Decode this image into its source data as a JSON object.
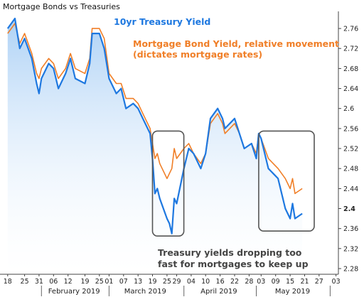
{
  "chart_data": {
    "type": "line",
    "title": "Mortgage Bonds vs Treasuries",
    "colors": {
      "treasury": "#1E78E0",
      "mbs": "#F07F28",
      "area_top": "#A9CFF5",
      "box": "#555555",
      "note": "#444444"
    },
    "series": [
      {
        "name": "10yr Treasury Yield",
        "x": [
          "2019-01-18",
          "2019-01-21",
          "2019-01-23",
          "2019-01-25",
          "2019-01-28",
          "2019-01-30",
          "2019-01-31",
          "2019-02-01",
          "2019-02-04",
          "2019-02-06",
          "2019-02-08",
          "2019-02-11",
          "2019-02-13",
          "2019-02-15",
          "2019-02-19",
          "2019-02-21",
          "2019-02-22",
          "2019-02-25",
          "2019-02-27",
          "2019-03-01",
          "2019-03-04",
          "2019-03-06",
          "2019-03-08",
          "2019-03-11",
          "2019-03-13",
          "2019-03-15",
          "2019-03-18",
          "2019-03-19",
          "2019-03-20",
          "2019-03-21",
          "2019-03-22",
          "2019-03-25",
          "2019-03-26",
          "2019-03-27",
          "2019-03-28",
          "2019-03-29",
          "2019-04-01",
          "2019-04-03",
          "2019-04-05",
          "2019-04-08",
          "2019-04-10",
          "2019-04-12",
          "2019-04-15",
          "2019-04-17",
          "2019-04-18",
          "2019-04-22",
          "2019-04-24",
          "2019-04-26",
          "2019-04-29",
          "2019-05-01",
          "2019-05-02",
          "2019-05-03",
          "2019-05-06",
          "2019-05-08",
          "2019-05-10",
          "2019-05-13",
          "2019-05-15",
          "2019-05-16",
          "2019-05-17",
          "2019-05-20"
        ],
        "values": [
          2.76,
          2.78,
          2.72,
          2.74,
          2.7,
          2.65,
          2.63,
          2.66,
          2.69,
          2.68,
          2.64,
          2.67,
          2.7,
          2.66,
          2.65,
          2.69,
          2.75,
          2.75,
          2.72,
          2.66,
          2.63,
          2.64,
          2.6,
          2.61,
          2.6,
          2.58,
          2.55,
          2.5,
          2.43,
          2.44,
          2.42,
          2.38,
          2.37,
          2.35,
          2.42,
          2.41,
          2.48,
          2.52,
          2.51,
          2.48,
          2.51,
          2.58,
          2.6,
          2.58,
          2.56,
          2.58,
          2.55,
          2.52,
          2.53,
          2.5,
          2.55,
          2.54,
          2.48,
          2.47,
          2.46,
          2.4,
          2.38,
          2.41,
          2.38,
          2.39
        ]
      },
      {
        "name": "Mortgage Bond Yield, relative movement (dictates mortgage rates)",
        "x": [
          "2019-01-18",
          "2019-01-21",
          "2019-01-23",
          "2019-01-25",
          "2019-01-28",
          "2019-01-30",
          "2019-01-31",
          "2019-02-01",
          "2019-02-04",
          "2019-02-06",
          "2019-02-08",
          "2019-02-11",
          "2019-02-13",
          "2019-02-15",
          "2019-02-19",
          "2019-02-21",
          "2019-02-22",
          "2019-02-25",
          "2019-02-27",
          "2019-03-01",
          "2019-03-04",
          "2019-03-06",
          "2019-03-08",
          "2019-03-11",
          "2019-03-13",
          "2019-03-15",
          "2019-03-18",
          "2019-03-19",
          "2019-03-20",
          "2019-03-21",
          "2019-03-22",
          "2019-03-25",
          "2019-03-26",
          "2019-03-27",
          "2019-03-28",
          "2019-03-29",
          "2019-04-01",
          "2019-04-03",
          "2019-04-05",
          "2019-04-08",
          "2019-04-10",
          "2019-04-12",
          "2019-04-15",
          "2019-04-17",
          "2019-04-18",
          "2019-04-22",
          "2019-04-24",
          "2019-04-26",
          "2019-04-29",
          "2019-05-01",
          "2019-05-02",
          "2019-05-03",
          "2019-05-06",
          "2019-05-08",
          "2019-05-10",
          "2019-05-13",
          "2019-05-15",
          "2019-05-16",
          "2019-05-17",
          "2019-05-20"
        ],
        "values": [
          2.75,
          2.77,
          2.73,
          2.75,
          2.71,
          2.67,
          2.66,
          2.68,
          2.7,
          2.69,
          2.66,
          2.68,
          2.71,
          2.68,
          2.67,
          2.7,
          2.76,
          2.76,
          2.74,
          2.67,
          2.65,
          2.65,
          2.62,
          2.62,
          2.61,
          2.59,
          2.56,
          2.53,
          2.5,
          2.51,
          2.49,
          2.46,
          2.47,
          2.48,
          2.52,
          2.5,
          2.52,
          2.53,
          2.51,
          2.49,
          2.51,
          2.57,
          2.59,
          2.57,
          2.55,
          2.57,
          2.55,
          2.52,
          2.53,
          2.51,
          2.55,
          2.54,
          2.5,
          2.49,
          2.48,
          2.46,
          2.44,
          2.46,
          2.43,
          2.44
        ]
      }
    ],
    "yaxis": {
      "min": 2.28,
      "max": 2.78,
      "ticks": [
        "2.76",
        "2.72",
        "2.68",
        "2.64",
        "2.6",
        "2.56",
        "2.52",
        "2.48",
        "2.44",
        "2.4",
        "2.36",
        "2.32",
        "2.28"
      ]
    },
    "xaxis": {
      "start": "2019-01-16",
      "end": "2019-06-04",
      "ticks": [
        {
          "date": "2019-01-18",
          "label": "18"
        },
        {
          "date": "2019-01-25",
          "label": "25"
        },
        {
          "date": "2019-01-31",
          "label": "31"
        },
        {
          "date": "2019-02-06",
          "label": "06"
        },
        {
          "date": "2019-02-12",
          "label": "12"
        },
        {
          "date": "2019-02-19",
          "label": "19"
        },
        {
          "date": "2019-02-25",
          "label": "25"
        },
        {
          "date": "2019-03-01",
          "label": "01"
        },
        {
          "date": "2019-03-07",
          "label": "07"
        },
        {
          "date": "2019-03-13",
          "label": "13"
        },
        {
          "date": "2019-03-19",
          "label": "19"
        },
        {
          "date": "2019-03-25",
          "label": "25"
        },
        {
          "date": "2019-03-29",
          "label": "29"
        },
        {
          "date": "2019-04-04",
          "label": "04"
        },
        {
          "date": "2019-04-10",
          "label": "10"
        },
        {
          "date": "2019-04-16",
          "label": "16"
        },
        {
          "date": "2019-04-22",
          "label": "22"
        },
        {
          "date": "2019-04-28",
          "label": "28"
        },
        {
          "date": "2019-05-03",
          "label": "03"
        },
        {
          "date": "2019-05-09",
          "label": "09"
        },
        {
          "date": "2019-05-15",
          "label": "15"
        },
        {
          "date": "2019-05-21",
          "label": "21"
        },
        {
          "date": "2019-05-27",
          "label": "27"
        },
        {
          "date": "2019-06-03",
          "label": "03"
        }
      ],
      "months": [
        {
          "label": "February 2019",
          "start": "2019-02-01",
          "end": "2019-02-28"
        },
        {
          "label": "March 2019",
          "start": "2019-03-01",
          "end": "2019-03-31"
        },
        {
          "label": "April 2019",
          "start": "2019-04-01",
          "end": "2019-04-30"
        },
        {
          "label": "May 2019",
          "start": "2019-05-01",
          "end": "2019-05-31"
        }
      ]
    },
    "highlight_boxes": [
      {
        "x_start": "2019-03-19",
        "x_end": "2019-04-01",
        "y_top": 2.555,
        "y_bottom": 2.345
      },
      {
        "x_start": "2019-05-02",
        "x_end": "2019-05-25",
        "y_top": 2.555,
        "y_bottom": 2.355
      }
    ],
    "annotations": {
      "treasury_label": "10yr Treasury Yield",
      "mbs_label_line1": "Mortgage Bond Yield, relative movement",
      "mbs_label_line2": "(dictates mortgage rates)",
      "note_line1": "Treasury yields dropping too",
      "note_line2": "fast for mortgages to keep up"
    },
    "grid": false,
    "legend": "inline labels top"
  }
}
